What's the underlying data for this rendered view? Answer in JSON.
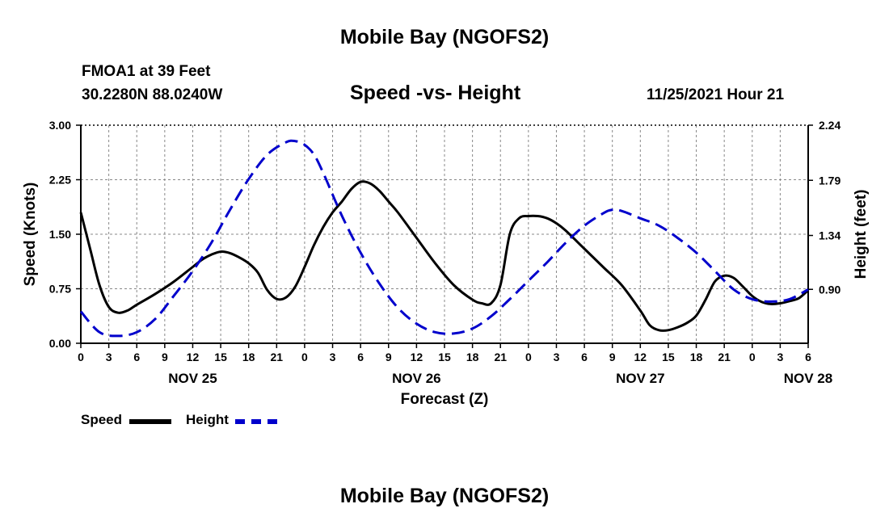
{
  "page": {
    "title": "Mobile Bay (NGOFS2)",
    "title_bottom": "Mobile Bay (NGOFS2)",
    "station": "FMOA1 at 39 Feet",
    "coords": "30.2280N  88.0240W",
    "subtitle": "Speed -vs- Height",
    "timestamp": "11/25/2021 Hour 21"
  },
  "chart_data": {
    "type": "line",
    "title": "Speed -vs- Height",
    "xlabel": "Forecast (Z)",
    "ylabel": "Speed (Knots)",
    "y2label": "Height (feet)",
    "x_range": [
      0,
      78
    ],
    "ylim": [
      0,
      3
    ],
    "y2lim": [
      0.46,
      2.24
    ],
    "y_ticks": [
      "0.00",
      "0.75",
      "1.50",
      "2.25",
      "3.00"
    ],
    "y_tick_values": [
      0,
      0.75,
      1.5,
      2.25,
      3.0
    ],
    "y2_ticks": [
      "0.90",
      "1.34",
      "1.79",
      "2.24"
    ],
    "y2_tick_values": [
      0.9,
      1.34,
      1.79,
      2.24
    ],
    "x_tick_labels": [
      "0",
      "3",
      "6",
      "9",
      "12",
      "15",
      "18",
      "21",
      "0",
      "3",
      "6",
      "9",
      "12",
      "15",
      "18",
      "21",
      "0",
      "3",
      "6",
      "9",
      "12",
      "15",
      "18",
      "21",
      "0",
      "3",
      "6"
    ],
    "date_labels": [
      {
        "text": "NOV 25",
        "x": 12
      },
      {
        "text": "NOV 26",
        "x": 36
      },
      {
        "text": "NOV 27",
        "x": 60
      },
      {
        "text": "NOV 28",
        "x": 78
      }
    ],
    "grid": true,
    "series": [
      {
        "name": "Speed",
        "axis": "left",
        "color": "#000000",
        "style": "solid",
        "x": [
          0,
          1,
          2,
          3,
          4,
          5,
          6,
          8,
          10,
          12,
          13,
          14,
          15,
          16,
          17,
          18,
          19,
          20,
          21,
          22,
          23,
          24,
          25,
          26,
          27,
          28,
          29,
          30,
          31,
          32,
          33,
          34,
          36,
          38,
          40,
          42,
          43,
          44,
          45,
          46,
          47,
          48,
          49,
          50,
          51,
          52,
          54,
          56,
          58,
          60,
          61,
          62,
          63,
          64,
          65,
          66,
          67,
          68,
          69,
          70,
          71,
          72,
          73,
          74,
          75,
          76,
          77,
          78
        ],
        "values": [
          1.8,
          1.3,
          0.8,
          0.5,
          0.42,
          0.45,
          0.53,
          0.68,
          0.85,
          1.05,
          1.15,
          1.22,
          1.26,
          1.24,
          1.18,
          1.1,
          0.97,
          0.73,
          0.61,
          0.63,
          0.78,
          1.05,
          1.35,
          1.6,
          1.8,
          1.95,
          2.12,
          2.22,
          2.2,
          2.1,
          1.95,
          1.8,
          1.45,
          1.1,
          0.8,
          0.6,
          0.55,
          0.55,
          0.8,
          1.5,
          1.72,
          1.75,
          1.75,
          1.72,
          1.65,
          1.55,
          1.3,
          1.05,
          0.8,
          0.45,
          0.25,
          0.18,
          0.18,
          0.22,
          0.28,
          0.38,
          0.6,
          0.85,
          0.93,
          0.9,
          0.78,
          0.65,
          0.57,
          0.54,
          0.55,
          0.58,
          0.62,
          0.73
        ]
      },
      {
        "name": "Height",
        "axis": "right",
        "color": "#0000cc",
        "style": "dashed",
        "x": [
          0,
          2,
          4,
          6,
          8,
          10,
          12,
          14,
          16,
          18,
          20,
          22,
          23,
          24,
          25,
          26,
          28,
          30,
          32,
          34,
          36,
          38,
          40,
          42,
          44,
          46,
          48,
          50,
          52,
          54,
          56,
          57,
          58,
          60,
          62,
          64,
          66,
          68,
          70,
          72,
          74,
          76,
          78
        ],
        "values": [
          0.72,
          0.55,
          0.52,
          0.55,
          0.66,
          0.85,
          1.05,
          1.28,
          1.55,
          1.8,
          2.0,
          2.1,
          2.11,
          2.08,
          2.0,
          1.85,
          1.5,
          1.2,
          0.95,
          0.75,
          0.62,
          0.55,
          0.54,
          0.58,
          0.68,
          0.82,
          0.97,
          1.12,
          1.28,
          1.42,
          1.52,
          1.55,
          1.54,
          1.48,
          1.42,
          1.32,
          1.2,
          1.05,
          0.9,
          0.82,
          0.8,
          0.82,
          0.9
        ]
      }
    ]
  },
  "legend": {
    "speed_label": "Speed",
    "height_label": "Height"
  }
}
